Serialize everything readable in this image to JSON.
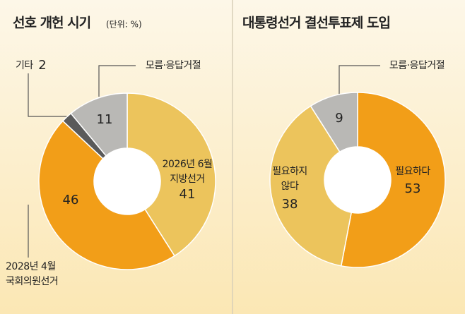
{
  "chart_data": [
    {
      "type": "pie",
      "title": "선호 개헌 시기",
      "subtitle": "(단위: %)",
      "categories": [
        [
          "2026년 6월",
          "지방선거"
        ],
        [
          "2028년 4월",
          "국회의원선거"
        ],
        [
          "기타"
        ],
        [
          "모름·응답거절"
        ]
      ],
      "values": [
        41,
        46,
        2,
        11
      ],
      "colors": [
        "#ecc45c",
        "#f29e18",
        "#5a5a5a",
        "#b9b8b5"
      ]
    },
    {
      "type": "pie",
      "title": "대통령선거 결선투표제 도입",
      "categories": [
        [
          "필요하다"
        ],
        [
          "필요하지",
          "않다"
        ],
        [
          "모름·응답거절"
        ]
      ],
      "values": [
        53,
        38,
        9
      ],
      "colors": [
        "#f29e18",
        "#ecc45c",
        "#b9b8b5"
      ]
    }
  ]
}
